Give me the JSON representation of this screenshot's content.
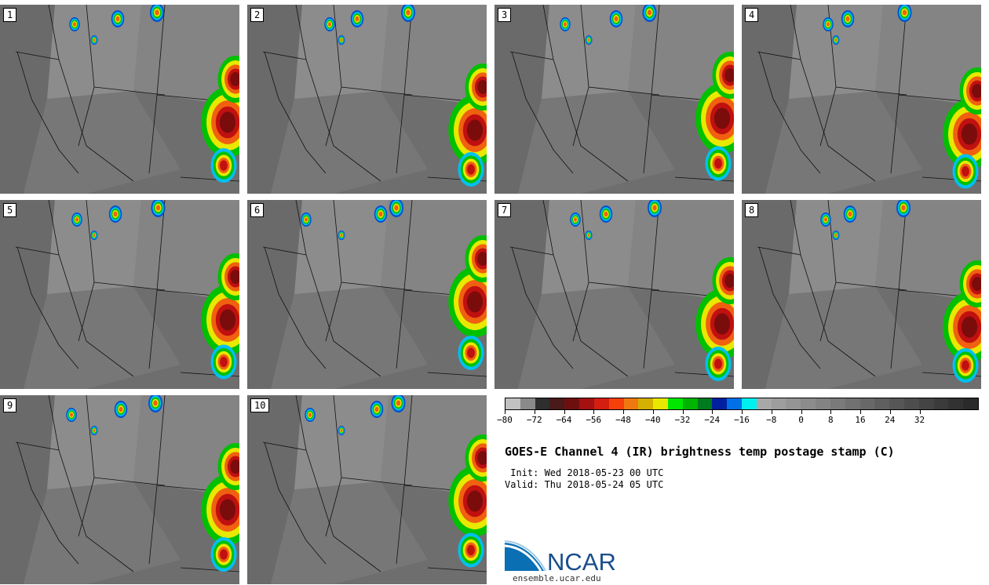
{
  "panels": [
    {
      "label": "1"
    },
    {
      "label": "2"
    },
    {
      "label": "3"
    },
    {
      "label": "4"
    },
    {
      "label": "5"
    },
    {
      "label": "6"
    },
    {
      "label": "7"
    },
    {
      "label": "8"
    },
    {
      "label": "9"
    },
    {
      "label": "10"
    }
  ],
  "colorbar": {
    "colors": [
      "#c0c0c0",
      "#8a8a8a",
      "#2e2e2e",
      "#4a1a1a",
      "#6e0f0f",
      "#a51010",
      "#d41e10",
      "#f5400a",
      "#f07810",
      "#d4b000",
      "#e8e800",
      "#00e800",
      "#00b400",
      "#007a1e",
      "#0020a0",
      "#0070e8",
      "#00f0f0",
      "#a8a8a8",
      "#9e9e9e",
      "#959595",
      "#8c8c8c",
      "#838383",
      "#7a7a7a",
      "#717171",
      "#686868",
      "#5f5f5f",
      "#565656",
      "#4d4d4d",
      "#444444",
      "#3b3b3b",
      "#323232",
      "#2a2a2a"
    ],
    "ticks": [
      "−80",
      "−72",
      "−64",
      "−56",
      "−48",
      "−40",
      "−32",
      "−24",
      "−16",
      "−8",
      "0",
      "8",
      "16",
      "24",
      "32"
    ],
    "min": -80,
    "max": 40
  },
  "title": "GOES-E Channel 4 (IR) brightness temp postage stamp (C)",
  "init_line": " Init: Wed 2018-05-23 00 UTC",
  "valid_line": "Valid: Thu 2018-05-24 05 UTC",
  "logo": {
    "name": "NCAR",
    "url": "ensemble.ucar.edu",
    "color": "#0b6fb4"
  }
}
